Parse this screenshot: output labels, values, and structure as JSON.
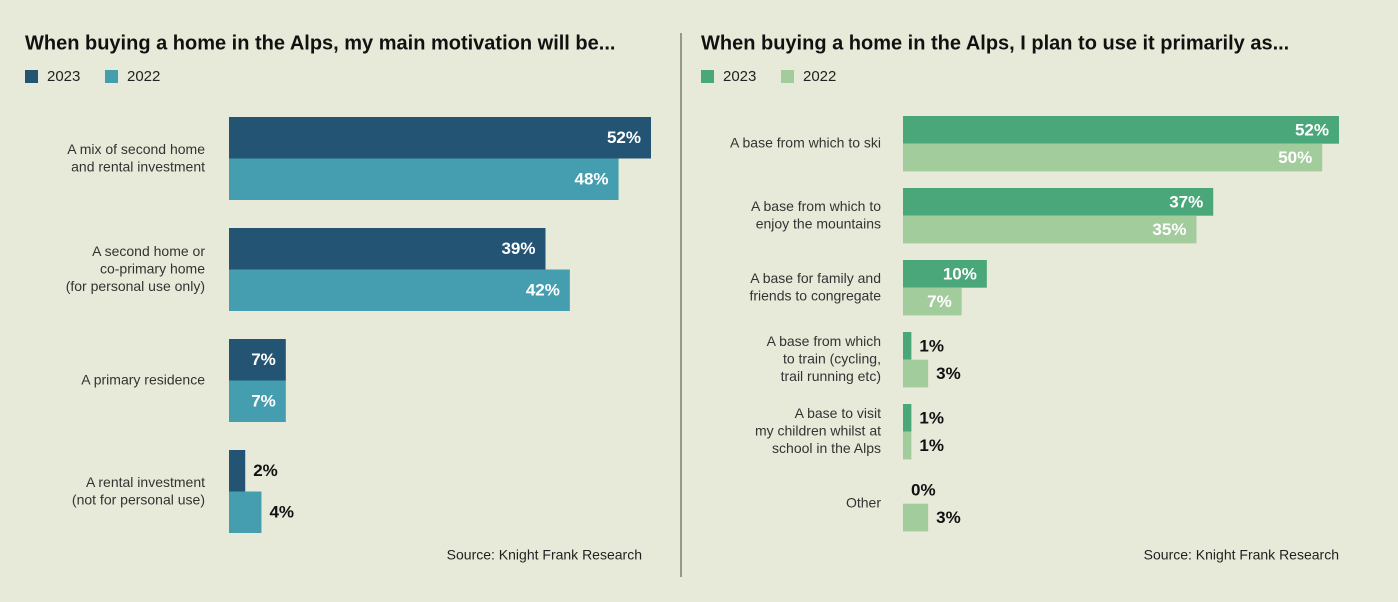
{
  "chart_data": [
    {
      "type": "bar",
      "orientation": "horizontal",
      "title": "When buying a home in the Alps, my main motivation will be...",
      "categories": [
        "A mix of second home\nand rental investment",
        "A second home or\nco-primary home\n(for personal use only)",
        "A primary residence",
        "A rental investment\n(not for personal use)"
      ],
      "series": [
        {
          "name": "2023",
          "color": "#235473",
          "values": [
            52,
            39,
            7,
            2
          ],
          "value_labels": [
            "52%",
            "39%",
            "7%",
            "2%"
          ]
        },
        {
          "name": "2022",
          "color": "#459eb0",
          "values": [
            48,
            42,
            7,
            4
          ],
          "value_labels": [
            "48%",
            "42%",
            "7%",
            "4%"
          ]
        }
      ],
      "source": "Source: Knight Frank Research"
    },
    {
      "type": "bar",
      "orientation": "horizontal",
      "title": "When buying a home in the Alps, I plan to use it primarily as...",
      "categories": [
        "A base from which to ski",
        "A base from which to\nenjoy the mountains",
        "A base for family and\nfriends to congregate",
        "A base from which\nto train (cycling,\ntrail running etc)",
        "A base to visit\nmy children whilst at\nschool in the Alps",
        "Other"
      ],
      "series": [
        {
          "name": "2023",
          "color": "#4aa77a",
          "values": [
            52,
            37,
            10,
            1,
            1,
            0
          ],
          "value_labels": [
            "52%",
            "37%",
            "10%",
            "1%",
            "1%",
            "0%"
          ]
        },
        {
          "name": "2022",
          "color": "#a3cc9c",
          "values": [
            50,
            35,
            7,
            3,
            1,
            3
          ],
          "value_labels": [
            "50%",
            "35%",
            "7%",
            "3%",
            "1%",
            "3%"
          ]
        }
      ],
      "source": "Source: Knight Frank Research"
    }
  ]
}
